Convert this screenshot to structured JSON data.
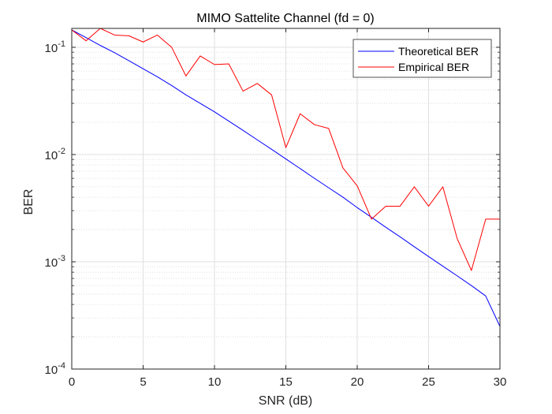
{
  "chart_data": {
    "type": "line",
    "title": "MIMO Sattelite Channel (fd = 0)",
    "xlabel": "SNR (dB)",
    "ylabel": "BER",
    "xlim": [
      0,
      30
    ],
    "ylim": [
      0.0001,
      0.15
    ],
    "yscale": "log",
    "grid": true,
    "legend_position": "top-right",
    "x_ticks": [
      0,
      5,
      10,
      15,
      20,
      25,
      30
    ],
    "y_tick_decades": [
      {
        "base": "10",
        "exp": "-1",
        "value": 0.1
      },
      {
        "base": "10",
        "exp": "-2",
        "value": 0.01
      },
      {
        "base": "10",
        "exp": "-3",
        "value": 0.001
      },
      {
        "base": "10",
        "exp": "-4",
        "value": 0.0001
      }
    ],
    "x": [
      0,
      1,
      2,
      3,
      4,
      5,
      6,
      7,
      8,
      9,
      10,
      11,
      12,
      13,
      14,
      15,
      16,
      17,
      18,
      19,
      20,
      21,
      22,
      23,
      24,
      25,
      26,
      27,
      28,
      29,
      30
    ],
    "series": [
      {
        "name": "Theoretical BER",
        "color": "#0000ff",
        "values": [
          0.145,
          0.123,
          0.104,
          0.089,
          0.075,
          0.063,
          0.053,
          0.044,
          0.036,
          0.03,
          0.025,
          0.0205,
          0.0168,
          0.0137,
          0.0112,
          0.0091,
          0.0074,
          0.006,
          0.0049,
          0.004,
          0.0032,
          0.0026,
          0.0021,
          0.00171,
          0.00138,
          0.00112,
          0.00091,
          0.00074,
          0.0006,
          0.00048,
          0.00025
        ]
      },
      {
        "name": "Empirical BER",
        "color": "#ff0000",
        "values": [
          0.145,
          0.115,
          0.15,
          0.13,
          0.128,
          0.112,
          0.13,
          0.1,
          0.054,
          0.083,
          0.069,
          0.07,
          0.039,
          0.046,
          0.036,
          0.0116,
          0.024,
          0.019,
          0.0175,
          0.0075,
          0.0051,
          0.0025,
          0.0033,
          0.0033,
          0.005,
          0.0033,
          0.005,
          0.00165,
          0.00083,
          0.0025,
          0.0025
        ]
      }
    ]
  }
}
